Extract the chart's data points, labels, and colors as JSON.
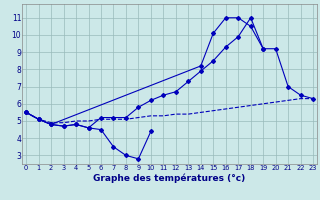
{
  "bg_color": "#cce8e8",
  "grid_color": "#99bbbb",
  "line_color": "#0000bb",
  "xlim_min": -0.3,
  "xlim_max": 23.3,
  "ylim_min": 2.5,
  "ylim_max": 11.8,
  "xticks": [
    0,
    1,
    2,
    3,
    4,
    5,
    6,
    7,
    8,
    9,
    10,
    11,
    12,
    13,
    14,
    15,
    16,
    17,
    18,
    19,
    20,
    21,
    22,
    23
  ],
  "yticks": [
    3,
    4,
    5,
    6,
    7,
    8,
    9,
    10,
    11
  ],
  "xlabel": "Graphe des températures (°c)",
  "line_dip_x": [
    0,
    1,
    2,
    3,
    4,
    5,
    6,
    7,
    8,
    9,
    10
  ],
  "line_dip_y": [
    5.5,
    5.1,
    4.8,
    4.7,
    4.8,
    4.6,
    4.5,
    3.5,
    3.0,
    2.8,
    4.4
  ],
  "line_main_x": [
    0,
    1,
    2,
    3,
    4,
    5,
    6,
    7,
    8,
    9,
    10,
    11,
    12,
    13,
    14,
    15,
    16,
    17,
    18,
    19,
    20,
    21,
    22,
    23
  ],
  "line_main_y": [
    5.5,
    5.1,
    4.8,
    4.7,
    4.8,
    4.6,
    5.2,
    5.2,
    5.2,
    5.8,
    6.2,
    6.5,
    6.7,
    7.3,
    7.9,
    8.5,
    9.3,
    9.9,
    11.0,
    9.2,
    9.2,
    7.0,
    6.5,
    6.3
  ],
  "line_peak_x": [
    0,
    1,
    2,
    14,
    15,
    16,
    17,
    18,
    19,
    20,
    21,
    22,
    23
  ],
  "line_peak_y": [
    5.5,
    5.1,
    4.8,
    8.2,
    10.1,
    11.0,
    11.0,
    10.5,
    9.2,
    null,
    null,
    null,
    null
  ],
  "line_flat_x": [
    0,
    1,
    2,
    3,
    4,
    5,
    6,
    7,
    8,
    9,
    10,
    11,
    12,
    13,
    14,
    15,
    16,
    17,
    18,
    19,
    20,
    21,
    22,
    23
  ],
  "line_flat_y": [
    5.5,
    5.1,
    4.9,
    4.9,
    5.0,
    5.0,
    5.1,
    5.1,
    5.1,
    5.2,
    5.3,
    5.3,
    5.4,
    5.4,
    5.5,
    5.6,
    5.7,
    5.8,
    5.9,
    6.0,
    6.1,
    6.2,
    6.3,
    6.3
  ]
}
